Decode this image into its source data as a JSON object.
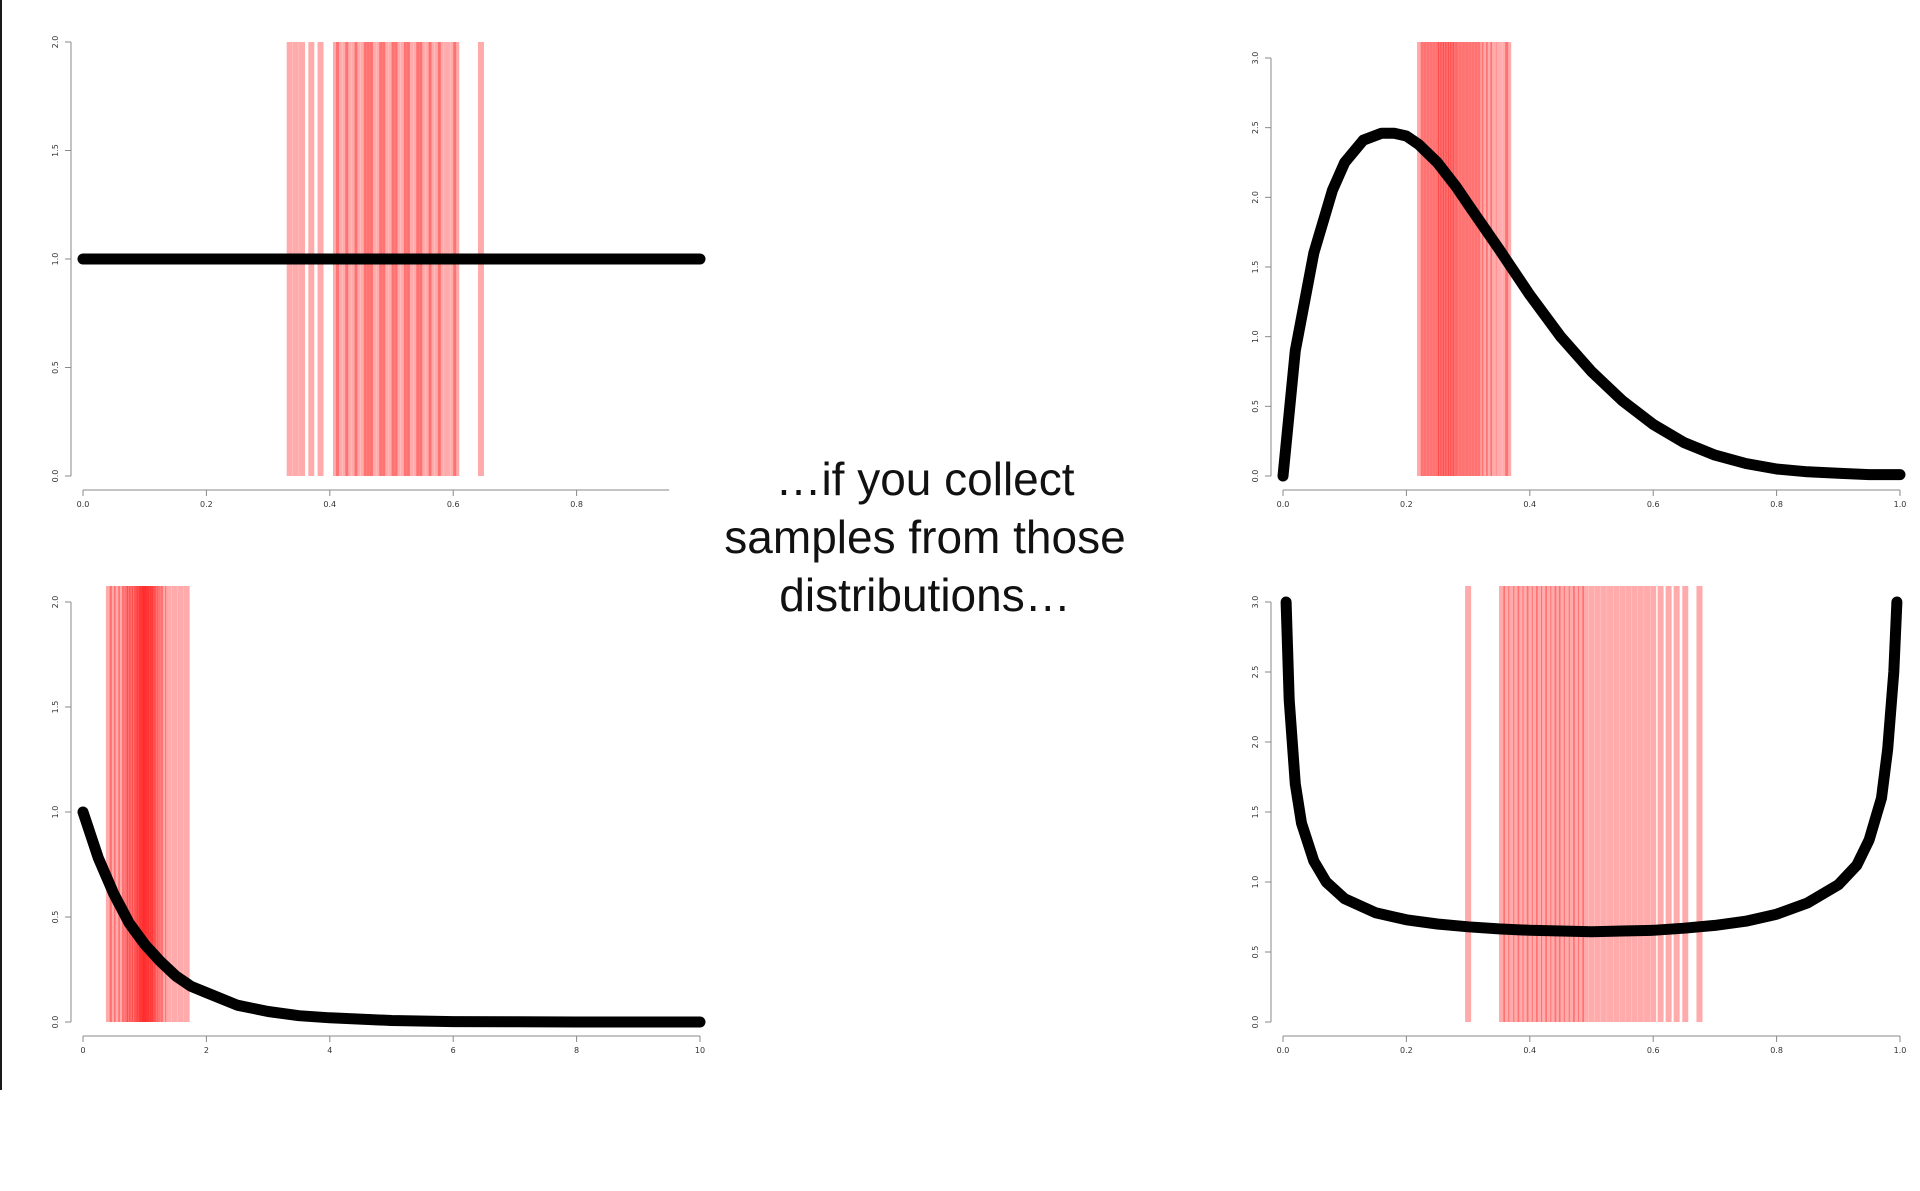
{
  "caption": {
    "lines": [
      "…if you collect",
      "samples from those",
      "distributions…"
    ]
  },
  "colors": {
    "curve": "#000000",
    "sample_line": "#ff0000",
    "axis": "#888888",
    "background": "#ffffff"
  },
  "chart_data": [
    {
      "type": "line",
      "position": "top-left",
      "distribution_shape": "uniform",
      "xlim": [
        0,
        1
      ],
      "ylim": [
        0,
        2
      ],
      "x_ticks": [
        0,
        0.2,
        0.4,
        0.6,
        0.8
      ],
      "x_tick_labels": [
        "0.0",
        "0.2",
        "0.4",
        "0.6",
        "0.8"
      ],
      "y_ticks": [
        0,
        0.5,
        1.0,
        1.5,
        2.0
      ],
      "y_tick_labels": [
        "0.0",
        "0.5",
        "1.0",
        "1.5",
        "2.0"
      ],
      "series": [
        {
          "x": [
            0,
            0.25,
            0.5,
            0.75,
            1.0
          ],
          "values": [
            1,
            1,
            1,
            1,
            1
          ]
        }
      ],
      "samples": [
        0.335,
        0.345,
        0.355,
        0.37,
        0.385,
        0.41,
        0.415,
        0.425,
        0.43,
        0.44,
        0.445,
        0.455,
        0.46,
        0.465,
        0.47,
        0.48,
        0.485,
        0.49,
        0.5,
        0.505,
        0.51,
        0.52,
        0.525,
        0.53,
        0.54,
        0.545,
        0.55,
        0.56,
        0.565,
        0.575,
        0.58,
        0.59,
        0.6,
        0.605,
        0.645
      ],
      "xlabel": "",
      "ylabel": "",
      "title": "",
      "grid": false
    },
    {
      "type": "line",
      "position": "top-right",
      "distribution_shape": "right-skewed",
      "xlim": [
        0,
        1
      ],
      "ylim": [
        0,
        3
      ],
      "x_ticks": [
        0,
        0.2,
        0.4,
        0.6,
        0.8,
        1.0
      ],
      "x_tick_labels": [
        "0.0",
        "0.2",
        "0.4",
        "0.6",
        "0.8",
        "1.0"
      ],
      "y_ticks": [
        0,
        0.5,
        1.0,
        1.5,
        2.0,
        2.5,
        3.0
      ],
      "y_tick_labels": [
        "0.0",
        "0.5",
        "1.0",
        "1.5",
        "2.0",
        "2.5",
        "3.0"
      ],
      "series": [
        {
          "x": [
            0,
            0.02,
            0.05,
            0.08,
            0.1,
            0.13,
            0.16,
            0.18,
            0.2,
            0.22,
            0.25,
            0.28,
            0.3,
            0.35,
            0.4,
            0.45,
            0.5,
            0.55,
            0.6,
            0.65,
            0.7,
            0.75,
            0.8,
            0.85,
            0.9,
            0.95,
            1.0
          ],
          "values": [
            0,
            0.9,
            1.6,
            2.05,
            2.25,
            2.41,
            2.46,
            2.46,
            2.44,
            2.38,
            2.25,
            2.08,
            1.95,
            1.63,
            1.3,
            1.0,
            0.75,
            0.54,
            0.37,
            0.24,
            0.15,
            0.09,
            0.05,
            0.03,
            0.02,
            0.01,
            0.01
          ]
        }
      ],
      "samples": [
        0.222,
        0.228,
        0.232,
        0.238,
        0.242,
        0.248,
        0.252,
        0.256,
        0.26,
        0.264,
        0.268,
        0.272,
        0.276,
        0.28,
        0.285,
        0.29,
        0.295,
        0.3,
        0.305,
        0.31,
        0.315,
        0.32,
        0.327,
        0.334,
        0.341,
        0.35,
        0.36,
        0.365
      ],
      "xlabel": "",
      "ylabel": "",
      "title": "",
      "grid": false
    },
    {
      "type": "line",
      "position": "bottom-left",
      "distribution_shape": "exponential",
      "xlim": [
        0,
        10
      ],
      "ylim": [
        0,
        2
      ],
      "x_ticks": [
        0,
        2,
        4,
        6,
        8,
        10
      ],
      "x_tick_labels": [
        "0",
        "2",
        "4",
        "6",
        "8",
        "10"
      ],
      "y_ticks": [
        0,
        0.5,
        1.0,
        1.5,
        2.0
      ],
      "y_tick_labels": [
        "0.0",
        "0.5",
        "1.0",
        "1.5",
        "2.0"
      ],
      "series": [
        {
          "x": [
            0,
            0.25,
            0.5,
            0.75,
            1.0,
            1.25,
            1.5,
            1.75,
            2,
            2.5,
            3,
            3.5,
            4,
            5,
            6,
            7,
            8,
            9,
            10
          ],
          "values": [
            1.0,
            0.78,
            0.61,
            0.47,
            0.37,
            0.29,
            0.22,
            0.17,
            0.14,
            0.08,
            0.05,
            0.03,
            0.02,
            0.007,
            0.002,
            0.001,
            0,
            0,
            0
          ]
        }
      ],
      "samples": [
        0.42,
        0.48,
        0.55,
        0.62,
        0.68,
        0.72,
        0.76,
        0.8,
        0.84,
        0.88,
        0.9,
        0.93,
        0.96,
        0.98,
        1.0,
        1.02,
        1.05,
        1.08,
        1.1,
        1.13,
        1.16,
        1.2,
        1.25,
        1.3,
        1.38,
        1.48,
        1.58,
        1.68
      ],
      "xlabel": "",
      "ylabel": "",
      "title": "",
      "grid": false
    },
    {
      "type": "line",
      "position": "bottom-right",
      "distribution_shape": "u-shaped",
      "xlim": [
        0,
        1
      ],
      "ylim": [
        0,
        3
      ],
      "x_ticks": [
        0,
        0.2,
        0.4,
        0.6,
        0.8,
        1.0
      ],
      "x_tick_labels": [
        "0.0",
        "0.2",
        "0.4",
        "0.6",
        "0.8",
        "1.0"
      ],
      "y_ticks": [
        0,
        0.5,
        1.0,
        1.5,
        2.0,
        2.5,
        3.0
      ],
      "y_tick_labels": [
        "0.0",
        "0.5",
        "1.0",
        "1.5",
        "2.0",
        "2.5",
        "3.0"
      ],
      "series": [
        {
          "x": [
            0.005,
            0.01,
            0.02,
            0.03,
            0.05,
            0.07,
            0.1,
            0.15,
            0.2,
            0.25,
            0.3,
            0.35,
            0.4,
            0.45,
            0.5,
            0.55,
            0.6,
            0.65,
            0.7,
            0.75,
            0.8,
            0.85,
            0.9,
            0.93,
            0.95,
            0.97,
            0.98,
            0.99,
            0.995
          ],
          "values": [
            3.0,
            2.3,
            1.7,
            1.42,
            1.15,
            1.0,
            0.88,
            0.78,
            0.73,
            0.7,
            0.68,
            0.665,
            0.655,
            0.65,
            0.645,
            0.65,
            0.655,
            0.67,
            0.69,
            0.72,
            0.77,
            0.85,
            0.98,
            1.12,
            1.3,
            1.6,
            1.95,
            2.5,
            3.0
          ]
        }
      ],
      "samples": [
        0.3,
        0.355,
        0.362,
        0.37,
        0.378,
        0.385,
        0.393,
        0.4,
        0.408,
        0.415,
        0.423,
        0.43,
        0.438,
        0.445,
        0.452,
        0.46,
        0.468,
        0.475,
        0.483,
        0.49,
        0.5,
        0.51,
        0.52,
        0.53,
        0.54,
        0.55,
        0.56,
        0.57,
        0.58,
        0.59,
        0.6,
        0.612,
        0.625,
        0.638,
        0.652,
        0.675
      ],
      "xlabel": "",
      "ylabel": "",
      "title": "",
      "grid": false
    }
  ]
}
